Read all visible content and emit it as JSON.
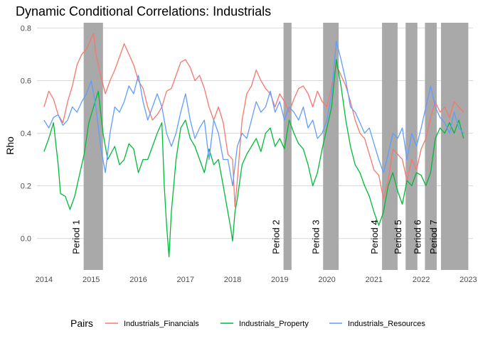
{
  "chart_data": {
    "type": "line",
    "title": "Dynamic Conditional Correlations: Industrials",
    "xlabel": "",
    "ylabel": "Rho",
    "xlim": [
      2013.85,
      2023.1
    ],
    "ylim": [
      -0.12,
      0.82
    ],
    "x_ticks": [
      {
        "value": 2014,
        "label": "2014"
      },
      {
        "value": 2015,
        "label": "2015"
      },
      {
        "value": 2016,
        "label": "2016"
      },
      {
        "value": 2017,
        "label": "2017"
      },
      {
        "value": 2018,
        "label": "2018"
      },
      {
        "value": 2019,
        "label": "2019"
      },
      {
        "value": 2020,
        "label": "2020"
      },
      {
        "value": 2021,
        "label": "2021"
      },
      {
        "value": 2022,
        "label": "2022"
      },
      {
        "value": 2023,
        "label": "2023"
      }
    ],
    "y_ticks": [
      {
        "value": 0.0,
        "label": "0.0"
      },
      {
        "value": 0.2,
        "label": "0.2"
      },
      {
        "value": 0.4,
        "label": "0.4"
      },
      {
        "value": 0.6,
        "label": "0.6"
      },
      {
        "value": 0.8,
        "label": "0.8"
      }
    ],
    "grid": true,
    "legend": {
      "title": "Pairs",
      "position": "bottom"
    },
    "shaded_periods": [
      {
        "label": "Period 1",
        "start": 2014.84,
        "end": 2015.25
      },
      {
        "label": "Period 2",
        "start": 2019.08,
        "end": 2019.25
      },
      {
        "label": "Period 3",
        "start": 2019.92,
        "end": 2020.25
      },
      {
        "label": "Period 4",
        "start": 2021.17,
        "end": 2021.5
      },
      {
        "label": "Period 5",
        "start": 2021.67,
        "end": 2021.92
      },
      {
        "label": "Period 6",
        "start": 2022.08,
        "end": 2022.33
      },
      {
        "label": "Period 7",
        "start": 2022.42,
        "end": 2023.0
      }
    ],
    "series": [
      {
        "name": "Industrials_Financials",
        "color": "#F8766D",
        "points": [
          [
            2014.0,
            0.5
          ],
          [
            2014.1,
            0.56
          ],
          [
            2014.2,
            0.53
          ],
          [
            2014.3,
            0.47
          ],
          [
            2014.4,
            0.44
          ],
          [
            2014.5,
            0.52
          ],
          [
            2014.6,
            0.58
          ],
          [
            2014.7,
            0.66
          ],
          [
            2014.8,
            0.7
          ],
          [
            2014.9,
            0.72
          ],
          [
            2015.0,
            0.76
          ],
          [
            2015.05,
            0.78
          ],
          [
            2015.1,
            0.7
          ],
          [
            2015.2,
            0.62
          ],
          [
            2015.3,
            0.55
          ],
          [
            2015.4,
            0.6
          ],
          [
            2015.5,
            0.64
          ],
          [
            2015.6,
            0.69
          ],
          [
            2015.7,
            0.74
          ],
          [
            2015.8,
            0.7
          ],
          [
            2015.9,
            0.66
          ],
          [
            2016.0,
            0.6
          ],
          [
            2016.1,
            0.57
          ],
          [
            2016.2,
            0.5
          ],
          [
            2016.3,
            0.45
          ],
          [
            2016.4,
            0.47
          ],
          [
            2016.5,
            0.5
          ],
          [
            2016.6,
            0.56
          ],
          [
            2016.7,
            0.57
          ],
          [
            2016.8,
            0.62
          ],
          [
            2016.9,
            0.67
          ],
          [
            2017.0,
            0.68
          ],
          [
            2017.1,
            0.65
          ],
          [
            2017.2,
            0.6
          ],
          [
            2017.3,
            0.62
          ],
          [
            2017.4,
            0.57
          ],
          [
            2017.5,
            0.5
          ],
          [
            2017.6,
            0.45
          ],
          [
            2017.7,
            0.5
          ],
          [
            2017.8,
            0.44
          ],
          [
            2017.9,
            0.32
          ],
          [
            2018.0,
            0.3
          ],
          [
            2018.05,
            0.12
          ],
          [
            2018.1,
            0.22
          ],
          [
            2018.2,
            0.45
          ],
          [
            2018.3,
            0.55
          ],
          [
            2018.4,
            0.58
          ],
          [
            2018.5,
            0.64
          ],
          [
            2018.6,
            0.6
          ],
          [
            2018.7,
            0.57
          ],
          [
            2018.8,
            0.55
          ],
          [
            2018.9,
            0.5
          ],
          [
            2019.0,
            0.55
          ],
          [
            2019.1,
            0.52
          ],
          [
            2019.2,
            0.48
          ],
          [
            2019.3,
            0.53
          ],
          [
            2019.4,
            0.57
          ],
          [
            2019.5,
            0.58
          ],
          [
            2019.6,
            0.55
          ],
          [
            2019.7,
            0.5
          ],
          [
            2019.8,
            0.56
          ],
          [
            2019.9,
            0.52
          ],
          [
            2020.0,
            0.5
          ],
          [
            2020.1,
            0.58
          ],
          [
            2020.2,
            0.66
          ],
          [
            2020.3,
            0.62
          ],
          [
            2020.4,
            0.58
          ],
          [
            2020.5,
            0.52
          ],
          [
            2020.6,
            0.45
          ],
          [
            2020.7,
            0.4
          ],
          [
            2020.8,
            0.38
          ],
          [
            2020.9,
            0.32
          ],
          [
            2021.0,
            0.26
          ],
          [
            2021.1,
            0.24
          ],
          [
            2021.2,
            0.15
          ],
          [
            2021.3,
            0.22
          ],
          [
            2021.4,
            0.34
          ],
          [
            2021.5,
            0.32
          ],
          [
            2021.6,
            0.3
          ],
          [
            2021.7,
            0.22
          ],
          [
            2021.8,
            0.3
          ],
          [
            2021.9,
            0.26
          ],
          [
            2022.0,
            0.34
          ],
          [
            2022.1,
            0.38
          ],
          [
            2022.2,
            0.46
          ],
          [
            2022.3,
            0.52
          ],
          [
            2022.4,
            0.48
          ],
          [
            2022.5,
            0.5
          ],
          [
            2022.6,
            0.46
          ],
          [
            2022.7,
            0.52
          ],
          [
            2022.8,
            0.5
          ],
          [
            2022.9,
            0.48
          ]
        ]
      },
      {
        "name": "Industrials_Property",
        "color": "#00BA38",
        "points": [
          [
            2014.0,
            0.33
          ],
          [
            2014.1,
            0.38
          ],
          [
            2014.2,
            0.44
          ],
          [
            2014.3,
            0.28
          ],
          [
            2014.35,
            0.17
          ],
          [
            2014.45,
            0.16
          ],
          [
            2014.55,
            0.11
          ],
          [
            2014.65,
            0.16
          ],
          [
            2014.75,
            0.24
          ],
          [
            2014.85,
            0.32
          ],
          [
            2014.95,
            0.44
          ],
          [
            2015.05,
            0.5
          ],
          [
            2015.15,
            0.56
          ],
          [
            2015.25,
            0.4
          ],
          [
            2015.35,
            0.3
          ],
          [
            2015.5,
            0.35
          ],
          [
            2015.6,
            0.28
          ],
          [
            2015.7,
            0.3
          ],
          [
            2015.8,
            0.36
          ],
          [
            2015.9,
            0.34
          ],
          [
            2016.0,
            0.25
          ],
          [
            2016.1,
            0.3
          ],
          [
            2016.2,
            0.3
          ],
          [
            2016.3,
            0.35
          ],
          [
            2016.4,
            0.4
          ],
          [
            2016.5,
            0.44
          ],
          [
            2016.55,
            0.2
          ],
          [
            2016.6,
            0.05
          ],
          [
            2016.65,
            -0.07
          ],
          [
            2016.7,
            0.1
          ],
          [
            2016.8,
            0.3
          ],
          [
            2016.9,
            0.42
          ],
          [
            2017.0,
            0.45
          ],
          [
            2017.1,
            0.38
          ],
          [
            2017.2,
            0.35
          ],
          [
            2017.3,
            0.3
          ],
          [
            2017.4,
            0.25
          ],
          [
            2017.5,
            0.34
          ],
          [
            2017.6,
            0.28
          ],
          [
            2017.7,
            0.3
          ],
          [
            2017.8,
            0.2
          ],
          [
            2017.9,
            0.1
          ],
          [
            2017.95,
            0.05
          ],
          [
            2018.0,
            -0.01
          ],
          [
            2018.05,
            0.1
          ],
          [
            2018.1,
            0.15
          ],
          [
            2018.2,
            0.28
          ],
          [
            2018.3,
            0.32
          ],
          [
            2018.4,
            0.35
          ],
          [
            2018.5,
            0.38
          ],
          [
            2018.6,
            0.33
          ],
          [
            2018.7,
            0.4
          ],
          [
            2018.8,
            0.42
          ],
          [
            2018.9,
            0.35
          ],
          [
            2019.0,
            0.38
          ],
          [
            2019.1,
            0.34
          ],
          [
            2019.2,
            0.45
          ],
          [
            2019.3,
            0.4
          ],
          [
            2019.4,
            0.36
          ],
          [
            2019.5,
            0.34
          ],
          [
            2019.6,
            0.28
          ],
          [
            2019.7,
            0.2
          ],
          [
            2019.8,
            0.25
          ],
          [
            2019.9,
            0.34
          ],
          [
            2020.0,
            0.42
          ],
          [
            2020.1,
            0.5
          ],
          [
            2020.2,
            0.68
          ],
          [
            2020.3,
            0.58
          ],
          [
            2020.4,
            0.45
          ],
          [
            2020.5,
            0.35
          ],
          [
            2020.6,
            0.28
          ],
          [
            2020.7,
            0.25
          ],
          [
            2020.8,
            0.2
          ],
          [
            2020.9,
            0.16
          ],
          [
            2021.0,
            0.1
          ],
          [
            2021.1,
            0.05
          ],
          [
            2021.2,
            0.1
          ],
          [
            2021.3,
            0.2
          ],
          [
            2021.4,
            0.25
          ],
          [
            2021.5,
            0.18
          ],
          [
            2021.6,
            0.13
          ],
          [
            2021.7,
            0.22
          ],
          [
            2021.8,
            0.2
          ],
          [
            2021.9,
            0.25
          ],
          [
            2022.0,
            0.24
          ],
          [
            2022.1,
            0.2
          ],
          [
            2022.2,
            0.25
          ],
          [
            2022.3,
            0.38
          ],
          [
            2022.4,
            0.42
          ],
          [
            2022.5,
            0.4
          ],
          [
            2022.6,
            0.44
          ],
          [
            2022.7,
            0.4
          ],
          [
            2022.8,
            0.45
          ],
          [
            2022.9,
            0.38
          ]
        ]
      },
      {
        "name": "Industrials_Resources",
        "color": "#619CFF",
        "points": [
          [
            2014.0,
            0.45
          ],
          [
            2014.1,
            0.42
          ],
          [
            2014.2,
            0.46
          ],
          [
            2014.3,
            0.47
          ],
          [
            2014.4,
            0.43
          ],
          [
            2014.5,
            0.45
          ],
          [
            2014.6,
            0.5
          ],
          [
            2014.7,
            0.48
          ],
          [
            2014.8,
            0.52
          ],
          [
            2014.9,
            0.55
          ],
          [
            2015.0,
            0.6
          ],
          [
            2015.1,
            0.5
          ],
          [
            2015.2,
            0.35
          ],
          [
            2015.3,
            0.25
          ],
          [
            2015.4,
            0.4
          ],
          [
            2015.5,
            0.5
          ],
          [
            2015.6,
            0.48
          ],
          [
            2015.7,
            0.52
          ],
          [
            2015.8,
            0.58
          ],
          [
            2015.9,
            0.55
          ],
          [
            2016.0,
            0.62
          ],
          [
            2016.1,
            0.52
          ],
          [
            2016.2,
            0.45
          ],
          [
            2016.3,
            0.5
          ],
          [
            2016.4,
            0.55
          ],
          [
            2016.5,
            0.5
          ],
          [
            2016.6,
            0.4
          ],
          [
            2016.7,
            0.35
          ],
          [
            2016.8,
            0.4
          ],
          [
            2016.9,
            0.48
          ],
          [
            2017.0,
            0.55
          ],
          [
            2017.1,
            0.45
          ],
          [
            2017.2,
            0.38
          ],
          [
            2017.3,
            0.42
          ],
          [
            2017.4,
            0.45
          ],
          [
            2017.5,
            0.3
          ],
          [
            2017.6,
            0.45
          ],
          [
            2017.7,
            0.4
          ],
          [
            2017.8,
            0.3
          ],
          [
            2017.9,
            0.3
          ],
          [
            2018.0,
            0.2
          ],
          [
            2018.1,
            0.35
          ],
          [
            2018.2,
            0.4
          ],
          [
            2018.3,
            0.38
          ],
          [
            2018.4,
            0.45
          ],
          [
            2018.5,
            0.52
          ],
          [
            2018.6,
            0.48
          ],
          [
            2018.7,
            0.5
          ],
          [
            2018.8,
            0.56
          ],
          [
            2018.9,
            0.48
          ],
          [
            2019.0,
            0.52
          ],
          [
            2019.1,
            0.45
          ],
          [
            2019.2,
            0.5
          ],
          [
            2019.3,
            0.48
          ],
          [
            2019.4,
            0.45
          ],
          [
            2019.5,
            0.5
          ],
          [
            2019.6,
            0.42
          ],
          [
            2019.7,
            0.45
          ],
          [
            2019.8,
            0.38
          ],
          [
            2019.9,
            0.4
          ],
          [
            2020.0,
            0.45
          ],
          [
            2020.1,
            0.55
          ],
          [
            2020.2,
            0.75
          ],
          [
            2020.3,
            0.68
          ],
          [
            2020.4,
            0.6
          ],
          [
            2020.5,
            0.5
          ],
          [
            2020.6,
            0.48
          ],
          [
            2020.7,
            0.44
          ],
          [
            2020.8,
            0.4
          ],
          [
            2020.9,
            0.42
          ],
          [
            2021.0,
            0.36
          ],
          [
            2021.1,
            0.3
          ],
          [
            2021.2,
            0.25
          ],
          [
            2021.3,
            0.32
          ],
          [
            2021.4,
            0.4
          ],
          [
            2021.5,
            0.38
          ],
          [
            2021.6,
            0.42
          ],
          [
            2021.7,
            0.3
          ],
          [
            2021.8,
            0.4
          ],
          [
            2021.9,
            0.35
          ],
          [
            2022.0,
            0.42
          ],
          [
            2022.1,
            0.5
          ],
          [
            2022.2,
            0.58
          ],
          [
            2022.3,
            0.5
          ],
          [
            2022.4,
            0.46
          ],
          [
            2022.5,
            0.44
          ],
          [
            2022.6,
            0.4
          ],
          [
            2022.7,
            0.48
          ],
          [
            2022.8,
            0.42
          ],
          [
            2022.9,
            0.4
          ]
        ]
      }
    ]
  }
}
